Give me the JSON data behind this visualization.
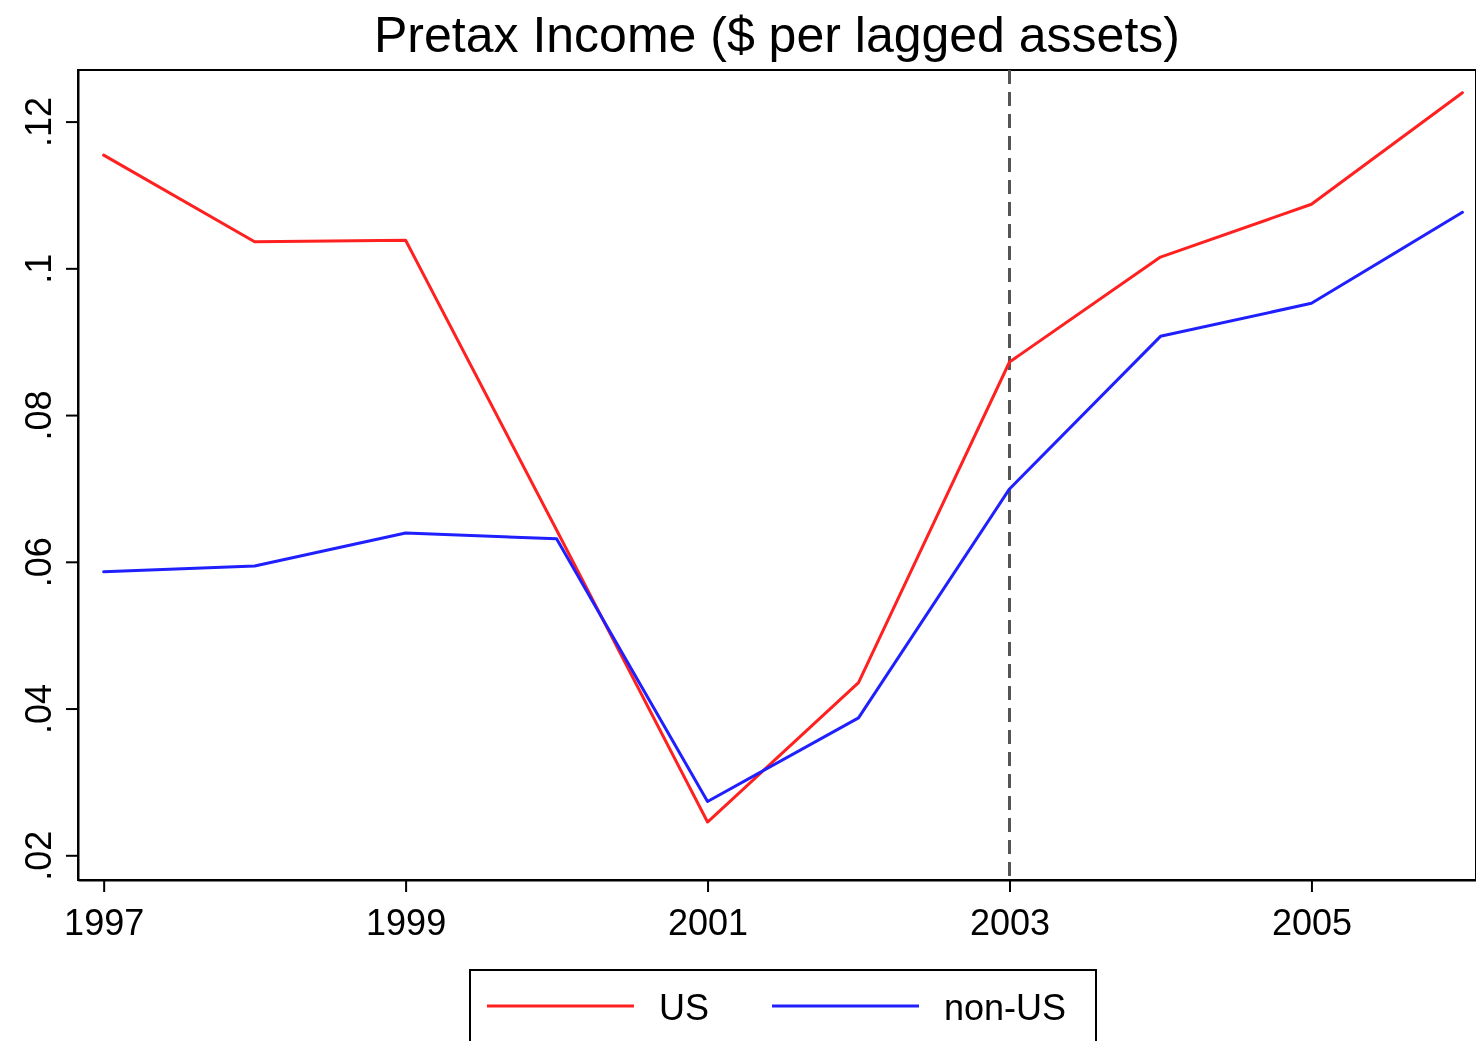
{
  "chart_data": {
    "type": "line",
    "title": "Pretax Income ($ per lagged assets)",
    "x": [
      1997,
      1998,
      1999,
      2000,
      2001,
      2002,
      2003,
      2004,
      2005,
      2006
    ],
    "series": [
      {
        "name": "US",
        "color": "#ff2020",
        "values": [
          0.1155,
          0.1037,
          0.1039,
          0.0644,
          0.0246,
          0.0436,
          0.0873,
          0.1016,
          0.1088,
          0.124
        ]
      },
      {
        "name": "non-US",
        "color": "#2020ff",
        "values": [
          0.0587,
          0.0595,
          0.064,
          0.0632,
          0.0274,
          0.0388,
          0.07,
          0.0908,
          0.0953,
          0.1077
        ]
      }
    ],
    "xlim": [
      1996.83,
      2006.09
    ],
    "xticks": [
      1997,
      1999,
      2001,
      2003,
      2005
    ],
    "ylim": [
      0.0167,
      0.1271
    ],
    "yticks": [
      {
        "value": 0.02,
        "label": ".02"
      },
      {
        "value": 0.04,
        "label": ".04"
      },
      {
        "value": 0.06,
        "label": ".06"
      },
      {
        "value": 0.08,
        "label": ".08"
      },
      {
        "value": 0.1,
        "label": ".1"
      },
      {
        "value": 0.12,
        "label": ".12"
      }
    ],
    "ref_lines": [
      {
        "axis": "x",
        "value": 2003,
        "color": "#555555",
        "line_style": "dashed"
      }
    ],
    "legend": "bottom",
    "grid": false,
    "marker": "none",
    "line_style": "solid"
  }
}
